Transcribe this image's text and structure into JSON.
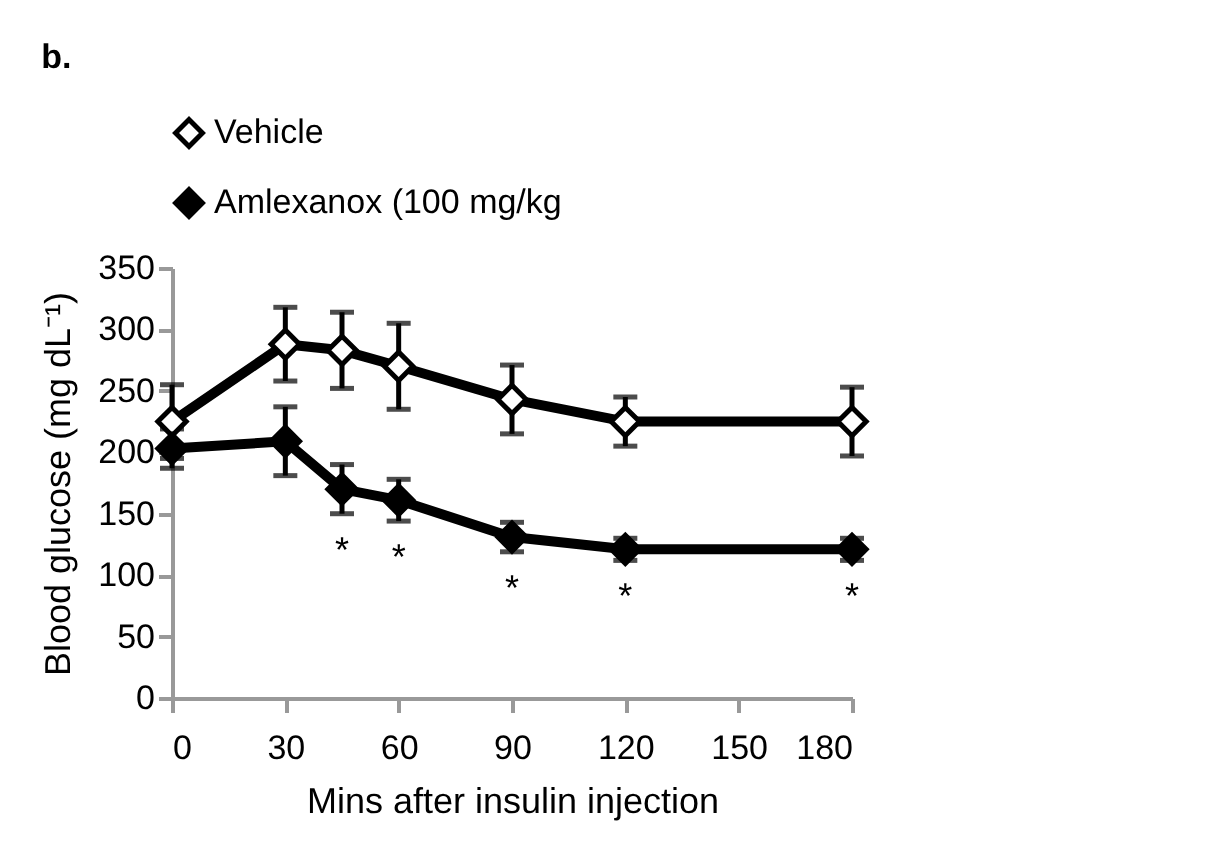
{
  "chart_data": {
    "type": "line",
    "title": "b.",
    "xlabel": "Mins after insulin injection",
    "ylabel": "Blood glucose (mg dL⁻¹)",
    "x": [
      0,
      30,
      45,
      60,
      90,
      120,
      180
    ],
    "series": [
      {
        "name": "Vehicle",
        "color": "#000000",
        "values": [
          225,
          288,
          283,
          270,
          243,
          225,
          225
        ],
        "errors": [
          30,
          30,
          31,
          35,
          28,
          20,
          28
        ]
      },
      {
        "name": "Amlexanox (100 mg/kg",
        "color": "#000000",
        "values": [
          203,
          209,
          170,
          161,
          131,
          121,
          121
        ],
        "errors": [
          16,
          28,
          20,
          17,
          12,
          9,
          9
        ]
      }
    ],
    "xlim": [
      0,
      180
    ],
    "xticks": [
      0,
      30,
      60,
      90,
      120,
      150,
      180
    ],
    "ylim": [
      0,
      350
    ],
    "yticks": [
      0,
      50,
      100,
      150,
      200,
      250,
      300,
      350
    ],
    "marker": "diamond",
    "line_style": "solid",
    "grid": false,
    "legend": "top",
    "annotations": [
      "*",
      "*",
      "*",
      "*",
      "*"
    ]
  }
}
